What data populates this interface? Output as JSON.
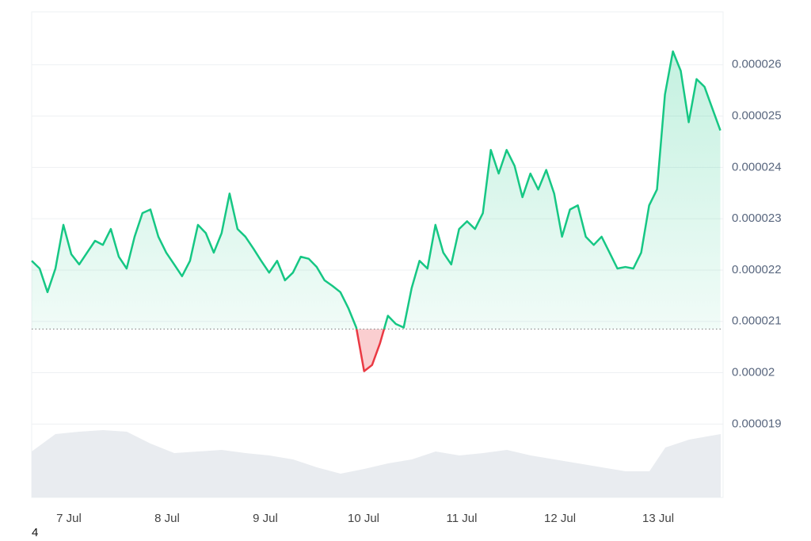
{
  "chart_data": {
    "type": "line",
    "x": [
      6.621,
      6.702,
      6.782,
      6.863,
      6.944,
      7.024,
      7.105,
      7.185,
      7.266,
      7.346,
      7.427,
      7.508,
      7.588,
      7.669,
      7.749,
      7.83,
      7.911,
      7.991,
      8.072,
      8.152,
      8.233,
      8.314,
      8.394,
      8.475,
      8.555,
      8.636,
      8.717,
      8.797,
      8.878,
      8.958,
      9.039,
      9.12,
      9.2,
      9.281,
      9.361,
      9.442,
      9.523,
      9.603,
      9.684,
      9.764,
      9.845,
      9.926,
      10.006,
      10.087,
      10.167,
      10.248,
      10.329,
      10.409,
      10.49,
      10.57,
      10.651,
      10.732,
      10.812,
      10.893,
      10.973,
      11.054,
      11.135,
      11.215,
      11.296,
      11.376,
      11.457,
      11.538,
      11.618,
      11.699,
      11.779,
      11.86,
      11.941,
      12.021,
      12.102,
      12.182,
      12.263,
      12.344,
      12.424,
      12.505,
      12.585,
      12.666,
      12.747,
      12.827,
      12.908,
      12.988,
      13.069,
      13.15,
      13.23,
      13.311,
      13.391,
      13.472,
      13.553,
      13.633
    ],
    "series": [
      {
        "color": "#16c784",
        "below_color": "#ea3943",
        "values": [
          2.218e-05,
          2.203e-05,
          2.157e-05,
          2.203e-05,
          2.288e-05,
          2.231e-05,
          2.211e-05,
          2.234e-05,
          2.257e-05,
          2.249e-05,
          2.28e-05,
          2.226e-05,
          2.203e-05,
          2.265e-05,
          2.311e-05,
          2.318e-05,
          2.265e-05,
          2.234e-05,
          2.211e-05,
          2.188e-05,
          2.218e-05,
          2.288e-05,
          2.272e-05,
          2.234e-05,
          2.272e-05,
          2.349e-05,
          2.28e-05,
          2.265e-05,
          2.242e-05,
          2.218e-05,
          2.195e-05,
          2.218e-05,
          2.18e-05,
          2.195e-05,
          2.226e-05,
          2.222e-05,
          2.206e-05,
          2.18e-05,
          2.169e-05,
          2.157e-05,
          2.126e-05,
          2.088e-05,
          2.003e-05,
          2.015e-05,
          2.057e-05,
          2.111e-05,
          2.095e-05,
          2.088e-05,
          2.165e-05,
          2.218e-05,
          2.203e-05,
          2.288e-05,
          2.234e-05,
          2.211e-05,
          2.28e-05,
          2.295e-05,
          2.28e-05,
          2.311e-05,
          2.434e-05,
          2.388e-05,
          2.434e-05,
          2.403e-05,
          2.342e-05,
          2.388e-05,
          2.357e-05,
          2.395e-05,
          2.349e-05,
          2.265e-05,
          2.318e-05,
          2.326e-05,
          2.265e-05,
          2.249e-05,
          2.265e-05,
          2.234e-05,
          2.203e-05,
          2.206e-05,
          2.203e-05,
          2.234e-05,
          2.326e-05,
          2.357e-05,
          2.542e-05,
          2.626e-05,
          2.588e-05,
          2.488e-05,
          2.572e-05,
          2.557e-05,
          2.514e-05,
          2.472e-05
        ]
      }
    ],
    "xlim": [
      6.621,
      13.661
    ],
    "xticks": [
      {
        "value": 7,
        "label": "7 Jul"
      },
      {
        "value": 8,
        "label": "8 Jul"
      },
      {
        "value": 9,
        "label": "9 Jul"
      },
      {
        "value": 10,
        "label": "10 Jul"
      },
      {
        "value": 11,
        "label": "11 Jul"
      },
      {
        "value": 12,
        "label": "12 Jul"
      },
      {
        "value": 13,
        "label": "13 Jul"
      }
    ],
    "ylim": [
      1.757e-05,
      2.703e-05
    ],
    "yticks": [
      1.9e-05,
      2e-05,
      2.1e-05,
      2.2e-05,
      2.3e-05,
      2.4e-05,
      2.5e-05,
      2.6e-05
    ],
    "baseline": 2.085e-05,
    "grid": true,
    "volume": {
      "color": "#e9ecf0",
      "ylim": [
        0,
        100
      ],
      "x": [
        6.621,
        6.863,
        7.105,
        7.347,
        7.589,
        7.831,
        8.073,
        8.315,
        8.556,
        8.798,
        9.04,
        9.282,
        9.524,
        9.766,
        10.008,
        10.25,
        10.492,
        10.734,
        10.976,
        11.218,
        11.46,
        11.702,
        11.944,
        12.185,
        12.427,
        12.669,
        12.911,
        13.073,
        13.315,
        13.637
      ],
      "values": [
        58,
        80,
        83,
        85,
        83,
        68,
        56,
        58,
        60,
        56,
        53,
        48,
        38,
        30,
        36,
        43,
        48,
        58,
        53,
        56,
        60,
        53,
        48,
        43,
        38,
        33,
        33,
        63,
        73,
        80
      ]
    }
  },
  "footer": "4"
}
